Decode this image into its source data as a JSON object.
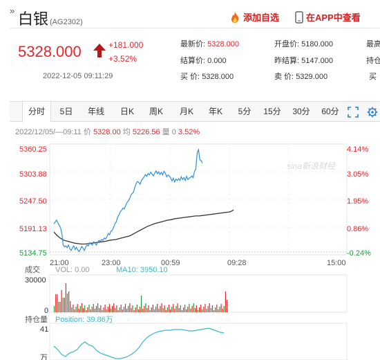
{
  "header": {
    "glyph": "»",
    "name": "白银",
    "code": "(AG2302)",
    "add_watch": "添加自选",
    "open_app": "在APP中查看"
  },
  "quote": {
    "price": "5328.000",
    "change": "+181.000",
    "change_pct": "+3.52%",
    "timestamp": "2022-12-05 09:11:29",
    "fields": [
      {
        "label": "最新价:",
        "value": "5328.000",
        "red": true
      },
      {
        "label": "开盘价:",
        "value": "5180.000",
        "red": false
      },
      {
        "label": "最高",
        "value": "",
        "red": false
      },
      {
        "label": "结算价:",
        "value": "0.000",
        "red": false
      },
      {
        "label": "昨结算:",
        "value": "5147.000",
        "red": false
      },
      {
        "label": "持仓",
        "value": "",
        "red": false
      },
      {
        "label": "买  价:",
        "value": "5328.000",
        "red": false
      },
      {
        "label": "卖  价:",
        "value": "5329.000",
        "red": false
      },
      {
        "label": "买",
        "value": "",
        "red": false
      }
    ]
  },
  "tabs": [
    "分时",
    "5日",
    "年线",
    "日K",
    "周K",
    "月K",
    "年K",
    "5分",
    "15分",
    "30分",
    "60分"
  ],
  "info": {
    "datetime": "2022/12/05/—09:11",
    "price_label": "价",
    "price": "5328.00",
    "avg_label": "均",
    "avg": "5226.56",
    "qty_label": "量",
    "qty": "0",
    "pct": "3.52%"
  },
  "chart_data": {
    "type": "line",
    "title": "",
    "y_left_ticks": [
      "5360.25",
      "5303.88",
      "5247.50",
      "5191.13",
      "5134.75"
    ],
    "y_right_ticks": [
      "4.14%",
      "3.05%",
      "1.95%",
      "0.86%",
      "-0.24%"
    ],
    "x_ticks": [
      "21:00",
      "23:00",
      "00:59",
      "09:28",
      "15:00"
    ],
    "ylim": [
      5134.75,
      5360.25
    ],
    "series": [],
    "price_x": [
      0,
      2,
      4,
      6,
      8,
      10,
      12,
      14,
      16,
      18,
      20,
      22,
      24,
      26,
      28,
      30,
      32,
      34,
      36,
      38,
      40,
      42,
      44,
      46,
      48,
      50,
      52,
      54,
      56,
      58,
      60,
      62,
      64,
      66,
      68,
      70,
      72,
      74,
      76,
      78,
      80,
      82,
      84,
      86,
      88,
      90,
      92,
      94,
      96,
      98,
      100,
      102,
      104,
      106,
      108,
      110,
      112,
      114,
      116,
      118,
      120,
      122,
      124,
      126,
      128,
      130,
      132,
      134,
      136,
      138,
      140,
      142,
      144,
      146,
      148,
      150,
      152,
      154,
      156,
      158,
      160,
      162,
      164,
      166,
      168,
      170,
      172,
      174,
      176,
      178,
      180,
      182,
      184,
      186,
      188,
      190,
      192,
      194,
      196,
      198,
      200,
      202,
      204,
      206,
      208,
      210,
      212,
      214,
      216,
      218,
      220,
      222,
      224,
      226,
      228,
      230,
      232,
      234,
      236,
      238,
      240,
      242,
      244,
      246,
      248,
      250,
      252,
      254,
      256,
      258,
      260
    ],
    "price_y": [
      5196,
      5200,
      5204,
      5198,
      5193,
      5188,
      5175,
      5150,
      5146,
      5148,
      5144,
      5150,
      5142,
      5138,
      5144,
      5148,
      5140,
      5145,
      5139,
      5136,
      5141,
      5147,
      5143,
      5138,
      5146,
      5150,
      5148,
      5155,
      5152,
      5150,
      5157,
      5154,
      5150,
      5156,
      5160,
      5158,
      5162,
      5160,
      5165,
      5163,
      5168,
      5175,
      5172,
      5180,
      5182,
      5188,
      5196,
      5200,
      5210,
      5215,
      5222,
      5225,
      5230,
      5228,
      5235,
      5242,
      5245,
      5250,
      5258,
      5262,
      5265,
      5275,
      5283,
      5288,
      5286,
      5282,
      5290,
      5294,
      5298,
      5303,
      5299,
      5305,
      5302,
      5308,
      5304,
      5300,
      5306,
      5311,
      5305,
      5309,
      5303,
      5308,
      5302,
      5310,
      5306,
      5298,
      5302,
      5300,
      5296,
      5289,
      5295,
      5287,
      5293,
      5290,
      5294,
      5290,
      5298,
      5292,
      5296,
      5290,
      5299,
      5292,
      5295,
      5297,
      5300,
      5296,
      5310,
      5315,
      5350,
      5357,
      5335,
      5333,
      5328
    ],
    "avg_y": [
      5178,
      5170,
      5164,
      5160,
      5158,
      5156,
      5154,
      5153,
      5152,
      5152,
      5153,
      5154,
      5155,
      5156,
      5157,
      5158,
      5160,
      5161,
      5162,
      5164,
      5166,
      5168,
      5170,
      5174,
      5178,
      5182,
      5186,
      5190,
      5193,
      5196,
      5198,
      5200,
      5202,
      5204,
      5205,
      5207,
      5208,
      5209,
      5210,
      5211,
      5212,
      5213,
      5213,
      5214,
      5215,
      5216,
      5217,
      5218,
      5219,
      5220,
      5221,
      5222,
      5226
    ],
    "volume_ylim": [
      0,
      30000
    ],
    "volume_label": "VOL: 0.00",
    "ma10_label": "MA10: 3950.10",
    "position_label": "Position: 39.86万"
  },
  "volume": {
    "section_label": "成交",
    "top_tick": "30000",
    "zero_tick": "0"
  },
  "position": {
    "section_label": "持仓量",
    "top_tick": "41",
    "bottom_tick": "万"
  },
  "watermark": "sina新浪财经",
  "colors": {
    "up": "#e4262b",
    "down": "#1a9b3a",
    "price_line": "#2d8fdd",
    "avg_line": "#333333",
    "position_line": "#3cb8c8"
  }
}
